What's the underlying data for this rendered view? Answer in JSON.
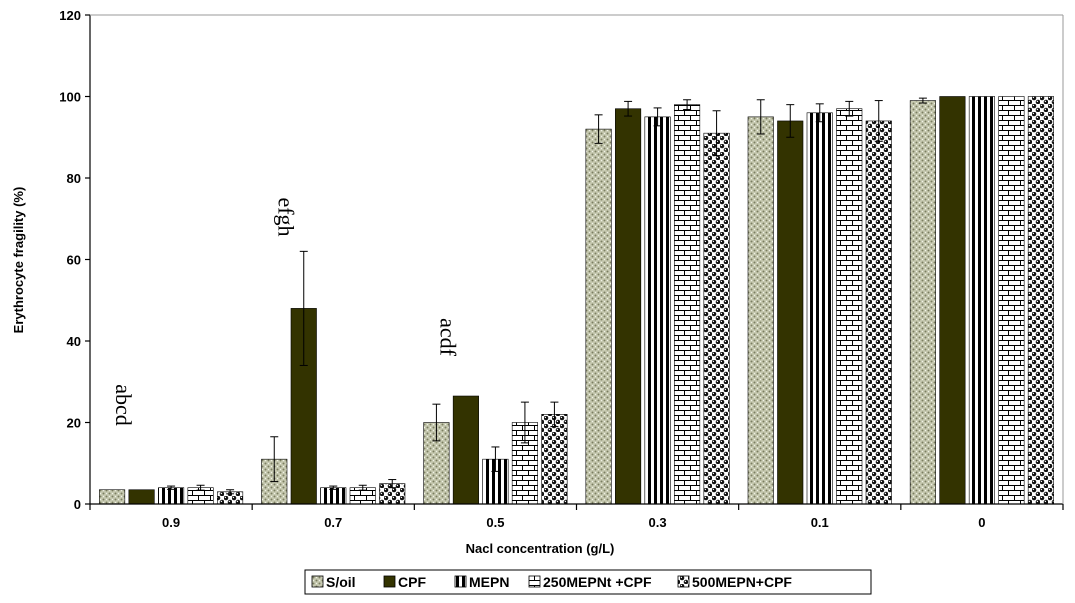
{
  "chart_data": {
    "type": "bar",
    "title": "",
    "xlabel": "Nacl concentration (g/L)",
    "ylabel": "Erythrocyte fragility (%)",
    "ylim": [
      0,
      120
    ],
    "yticks": [
      0,
      20,
      40,
      60,
      80,
      100,
      120
    ],
    "grid": false,
    "legend_position": "bottom",
    "categories": [
      "0.9",
      "0.7",
      "0.5",
      "0.3",
      "0.1",
      "0"
    ],
    "series": [
      {
        "name": "S/oil",
        "pattern": "dots",
        "color": "#b8bca0",
        "values": [
          3.5,
          11,
          20,
          92,
          95,
          99
        ],
        "errors": [
          0,
          5.5,
          4.5,
          3.5,
          4.2,
          0.6
        ]
      },
      {
        "name": "CPF",
        "pattern": "solid",
        "color": "#333300",
        "values": [
          3.5,
          48,
          26.5,
          97,
          94,
          100
        ],
        "errors": [
          0,
          14,
          0,
          1.8,
          4,
          0
        ]
      },
      {
        "name": "MEPN",
        "pattern": "vertical-lines",
        "color": "#000000",
        "values": [
          4,
          4,
          11,
          95,
          96,
          100
        ],
        "errors": [
          0.4,
          0.4,
          3,
          2.2,
          2.2,
          0
        ]
      },
      {
        "name": "250MEPNt +CPF",
        "pattern": "bricks",
        "color": "#000000",
        "values": [
          4,
          4,
          20,
          98,
          97,
          100
        ],
        "errors": [
          0.6,
          0.6,
          5,
          1.2,
          1.8,
          0
        ]
      },
      {
        "name": "500MEPN+CPF",
        "pattern": "spheres",
        "color": "#000000",
        "values": [
          3,
          5,
          22,
          91,
          94,
          100
        ],
        "errors": [
          0.5,
          1,
          3,
          5.5,
          5,
          0
        ]
      }
    ],
    "annotations": [
      {
        "text": "abcd",
        "category": "0.9"
      },
      {
        "text": "efgh",
        "category": "0.7"
      },
      {
        "text": "acdf",
        "category": "0.5"
      }
    ]
  }
}
